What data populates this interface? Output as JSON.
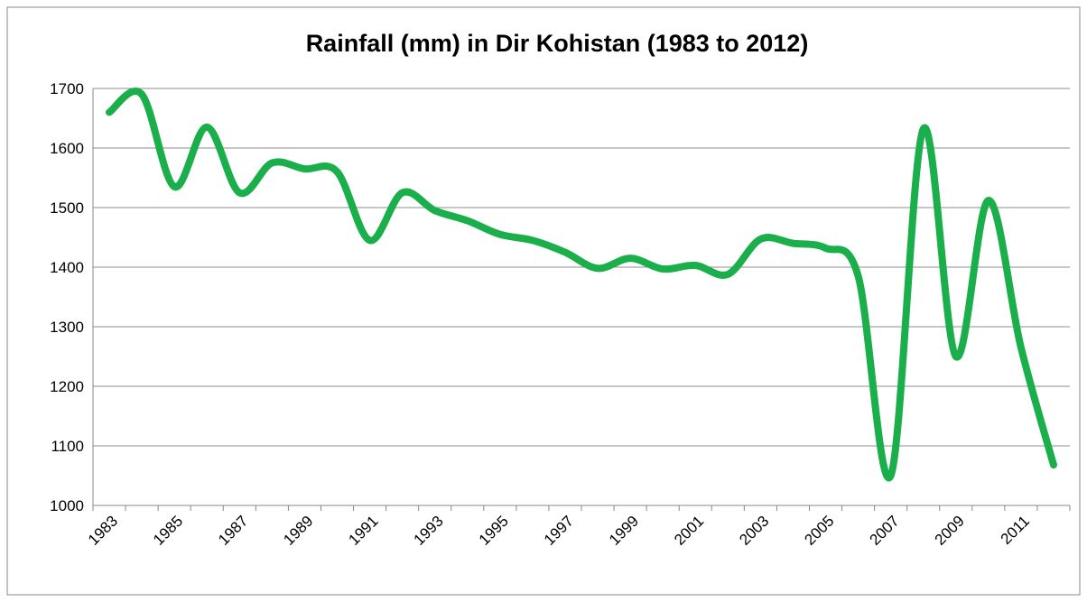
{
  "chart_data": {
    "type": "line",
    "title": "Rainfall (mm) in  Dir Kohistan  (1983 to 2012)",
    "categories": [
      "1983",
      null,
      "1985",
      null,
      "1987",
      null,
      "1989",
      null,
      "1991",
      null,
      "1993",
      null,
      "1995",
      null,
      "1997",
      null,
      "1999",
      null,
      "2001",
      null,
      "2003",
      null,
      "2005",
      null,
      "2007",
      null,
      "2009",
      null,
      "2011",
      null
    ],
    "series": [
      {
        "name": "Rainfall",
        "color": "#1aaf4b",
        "values": [
          1660,
          1690,
          1535,
          1635,
          1525,
          1575,
          1565,
          1560,
          1445,
          1525,
          1495,
          1478,
          1455,
          1445,
          1425,
          1398,
          1415,
          1397,
          1403,
          1388,
          1447,
          1440,
          1432,
          1385,
          1050,
          1632,
          1250,
          1512,
          1265,
          1068
        ]
      }
    ],
    "ylim": [
      1000,
      1700
    ],
    "yticks": [
      1000,
      1100,
      1200,
      1300,
      1400,
      1500,
      1600,
      1700
    ],
    "grid": true
  }
}
